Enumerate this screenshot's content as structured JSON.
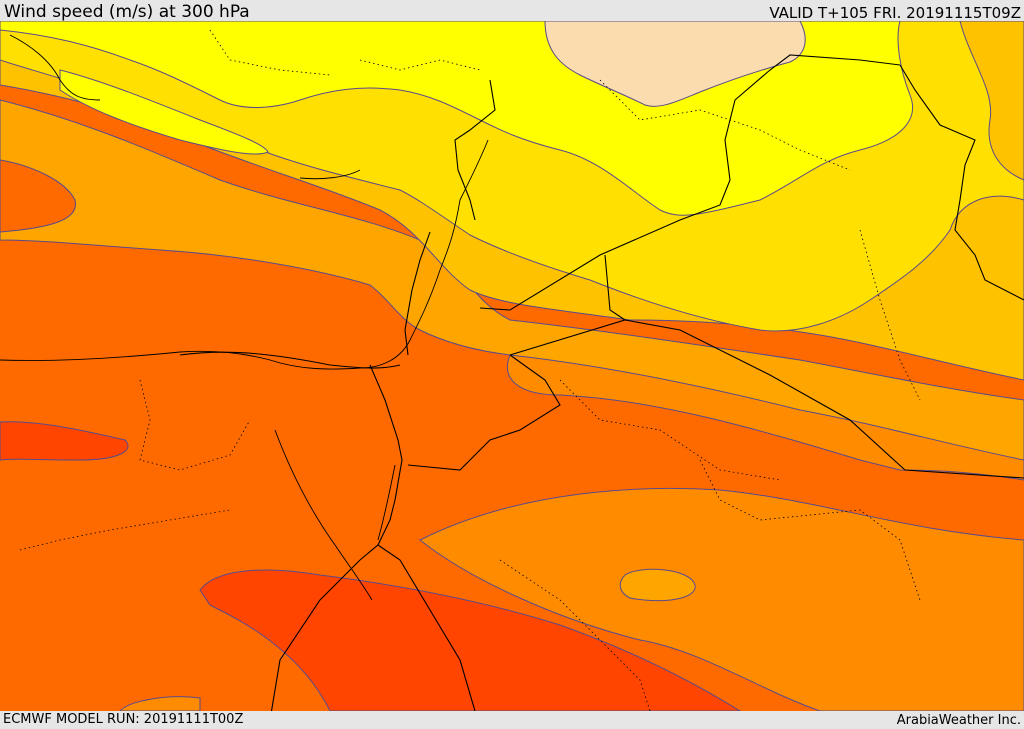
{
  "header": {
    "title": "Wind speed (m/s) at 300 hPa",
    "valid_time": "VALID T+105 FRI. 20191115T09Z"
  },
  "footer": {
    "model_run": "ECMWF MODEL RUN: 20191111T00Z",
    "credit": "ArabiaWeather Inc."
  },
  "map": {
    "variable": "wind speed",
    "level": "300 hPa",
    "units": "m/s",
    "palette": {
      "lowest": "#fbdcae",
      "very_low": "#ffff00",
      "low": "#ffe000",
      "low_mid": "#ffc200",
      "mid": "#ffa500",
      "mid_high": "#ff8c00",
      "high": "#ff6a00",
      "very_high": "#ff4500",
      "boundary_line": "#000000",
      "contour_line": "#5a4a8a"
    }
  }
}
